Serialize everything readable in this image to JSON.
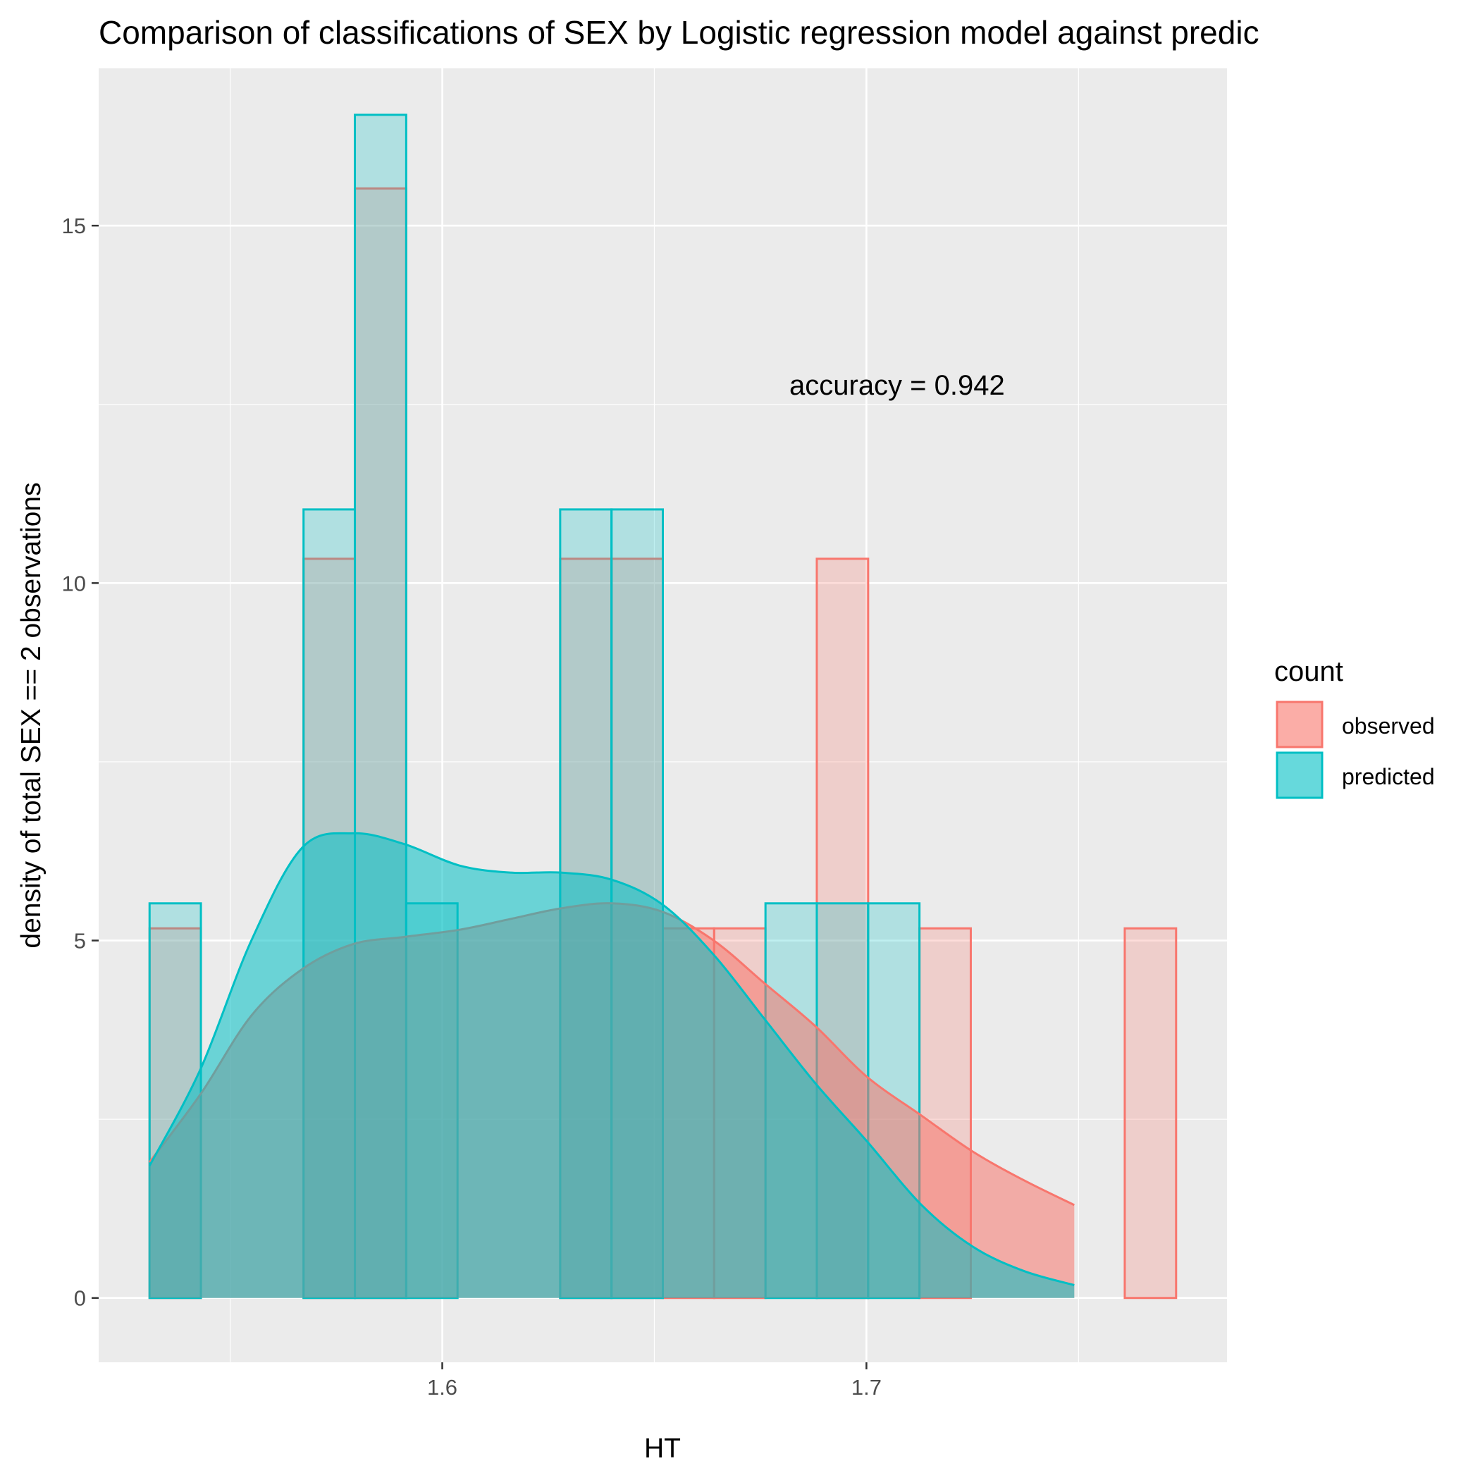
{
  "chart_data": {
    "type": "histogram with density overlay",
    "title": "Comparison of classifications of SEX by Logistic regression model against predic",
    "xlabel": "HT",
    "ylabel": "density of total SEX == 2 observations",
    "xlim": [
      1.519,
      1.785
    ],
    "ylim": [
      -0.9,
      17.2
    ],
    "x_ticks": [
      1.6,
      1.7
    ],
    "x_tick_labels": [
      "1.6",
      "1.7"
    ],
    "y_ticks": [
      0,
      5,
      10,
      15
    ],
    "y_tick_labels": [
      "0",
      "5",
      "10",
      "15"
    ],
    "grid": true,
    "annotation": "accuracy = 0.942",
    "legend": {
      "title": "count",
      "position": "right",
      "entries": [
        "observed",
        "predicted"
      ]
    },
    "colors": {
      "observed": "#F8766D",
      "predicted": "#00BFC4",
      "panel": "#EBEBEB",
      "grid": "#FFFFFF"
    },
    "bin_edges": [
      1.531,
      1.5431,
      1.5552,
      1.5673,
      1.5794,
      1.5915,
      1.6036,
      1.6157,
      1.6278,
      1.6399,
      1.652,
      1.6641,
      1.6762,
      1.6883,
      1.7004,
      1.7125,
      1.7246,
      1.7367,
      1.7488,
      1.7609
    ],
    "series": [
      {
        "name": "observed",
        "histogram_values": [
          5.17,
          0,
          0,
          10.34,
          15.52,
          0,
          0,
          0,
          10.34,
          10.34,
          5.17,
          5.17,
          0,
          10.34,
          0,
          5.17,
          0,
          0,
          0,
          5.17
        ],
        "density_x": [
          1.531,
          1.543,
          1.555,
          1.567,
          1.579,
          1.591,
          1.604,
          1.616,
          1.628,
          1.64,
          1.652,
          1.664,
          1.676,
          1.688,
          1.7,
          1.713,
          1.725,
          1.737,
          1.749
        ],
        "density_y": [
          1.9,
          2.85,
          3.95,
          4.6,
          4.95,
          5.05,
          5.15,
          5.3,
          5.45,
          5.52,
          5.4,
          5.0,
          4.4,
          3.8,
          3.1,
          2.55,
          2.05,
          1.65,
          1.3
        ]
      },
      {
        "name": "predicted",
        "histogram_values": [
          5.52,
          0,
          0,
          11.03,
          16.55,
          5.52,
          0,
          0,
          11.03,
          11.03,
          0,
          0,
          5.52,
          5.52,
          5.52,
          0,
          0,
          0,
          0,
          0
        ],
        "density_x": [
          1.531,
          1.543,
          1.555,
          1.567,
          1.579,
          1.591,
          1.604,
          1.616,
          1.628,
          1.64,
          1.652,
          1.664,
          1.676,
          1.688,
          1.7,
          1.713,
          1.725,
          1.737,
          1.749
        ],
        "density_y": [
          1.85,
          3.2,
          5.0,
          6.3,
          6.5,
          6.35,
          6.05,
          5.95,
          5.95,
          5.85,
          5.5,
          4.8,
          3.9,
          3.0,
          2.2,
          1.3,
          0.72,
          0.38,
          0.18
        ]
      }
    ]
  }
}
